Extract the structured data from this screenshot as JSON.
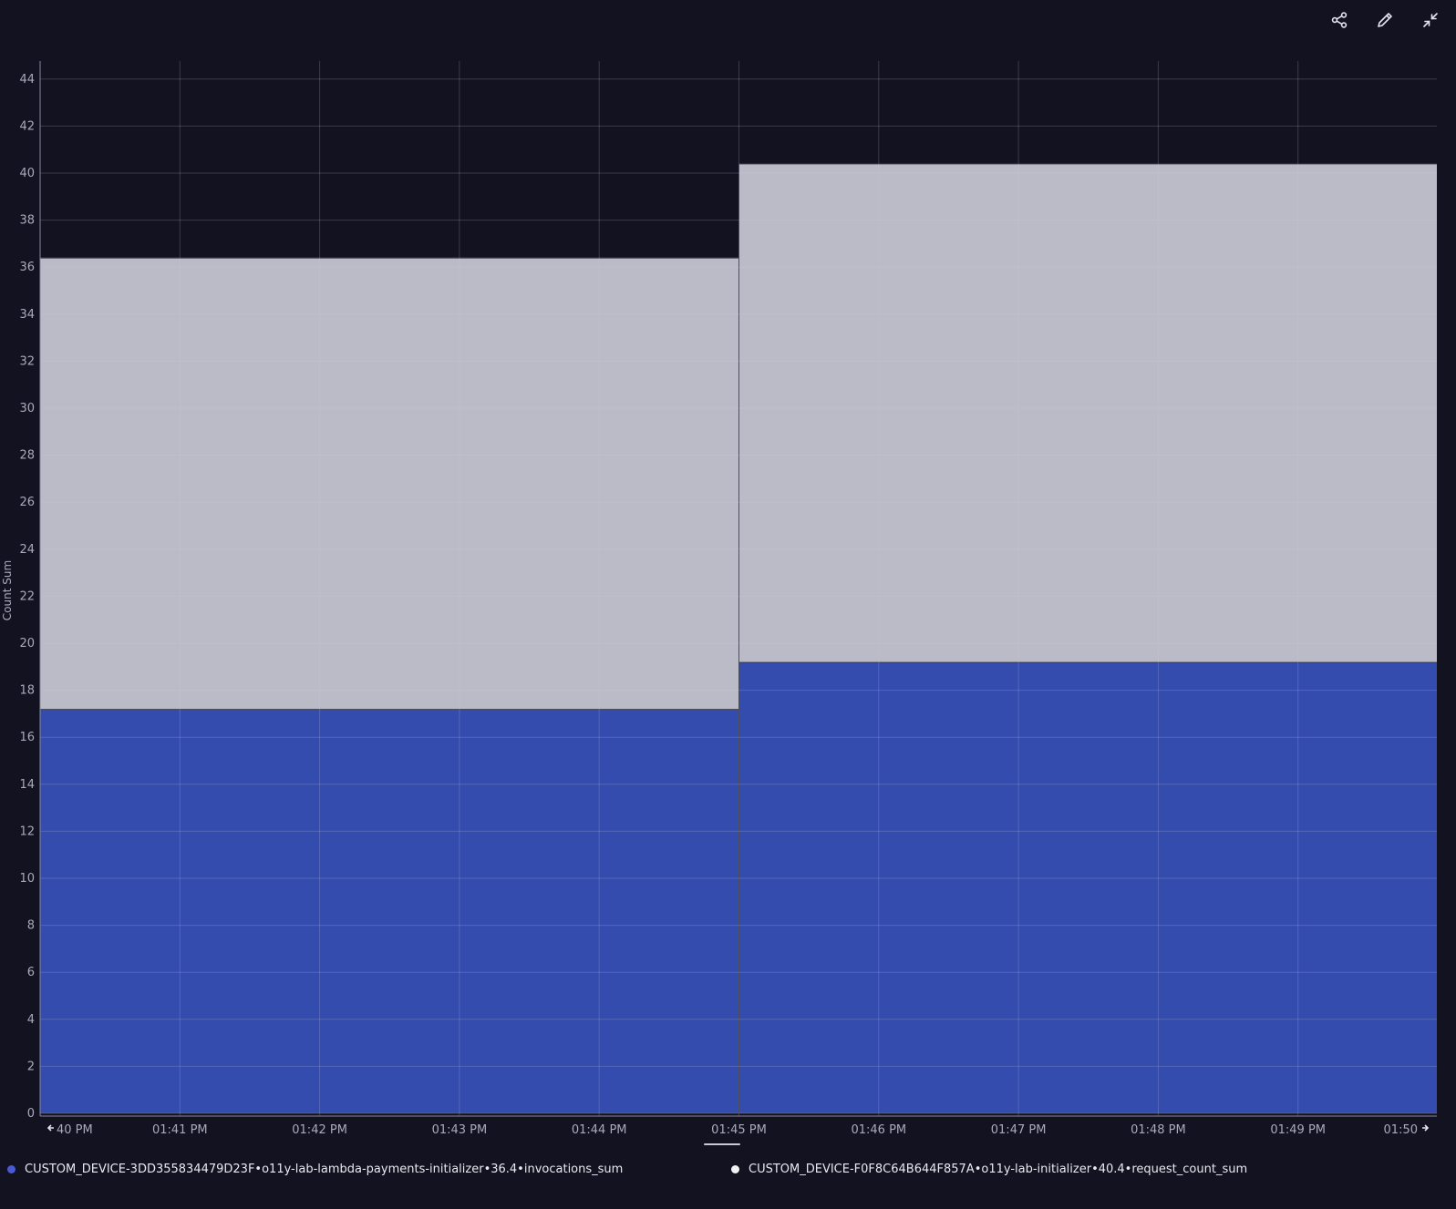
{
  "toolbar": {
    "icons": [
      "share-icon",
      "pencil-icon",
      "collapse-icon"
    ]
  },
  "colors": {
    "background": "#121220",
    "grid": "#3a3b4e",
    "axis_text": "#a9aabb",
    "series_blue": "#344cae",
    "series_light": "#bbbbc8"
  },
  "chart_data": {
    "type": "area",
    "stacked": true,
    "step": true,
    "ylabel": "Count Sum",
    "ylim": [
      0,
      45
    ],
    "yticks": [
      0,
      2,
      4,
      6,
      8,
      10,
      12,
      14,
      16,
      18,
      20,
      22,
      24,
      26,
      28,
      30,
      32,
      34,
      36,
      38,
      40,
      42,
      44
    ],
    "xticks": [
      "40 PM",
      "01:41 PM",
      "01:42 PM",
      "01:43 PM",
      "01:44 PM",
      "01:45 PM",
      "01:46 PM",
      "01:47 PM",
      "01:48 PM",
      "01:49 PM",
      "01:50"
    ],
    "intervals": [
      "01:40 PM",
      "01:45 PM"
    ],
    "grid": true,
    "legend_position": "bottom",
    "series": [
      {
        "id": "invocations",
        "color": "#344cae",
        "values": [
          17.2,
          19.2
        ]
      },
      {
        "id": "requests",
        "color": "#bbbbc8",
        "values": [
          19.2,
          21.2
        ]
      }
    ]
  },
  "legend": {
    "items": [
      {
        "label": "CUSTOM_DEVICE-3DD355834479D23F•o11y-lab-lambda-payments-initializer•36.4•invocations_sum",
        "color": "#4a5ad4"
      },
      {
        "label": "CUSTOM_DEVICE-F0F8C64B644F857A•o11y-lab-initializer•40.4•request_count_sum",
        "color": "#f2f2f5"
      }
    ]
  }
}
